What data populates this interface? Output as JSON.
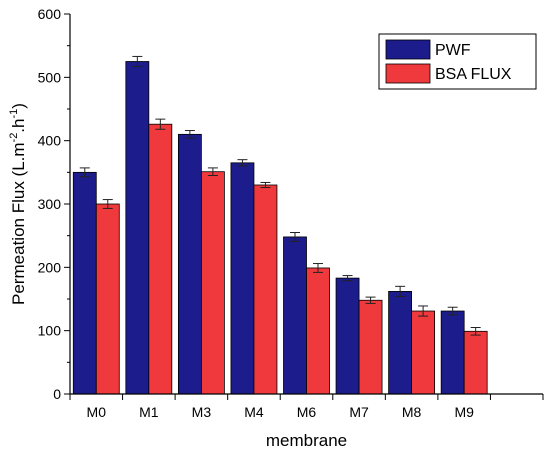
{
  "chart_data": {
    "type": "bar",
    "categories": [
      "M0",
      "M1",
      "M3",
      "M4",
      "M6",
      "M7",
      "M8",
      "M9"
    ],
    "series": [
      {
        "name": "PWF",
        "color": "#1c1c8c",
        "values": [
          350,
          525,
          410,
          365,
          248,
          183,
          162,
          131
        ],
        "errors": [
          7,
          8,
          6,
          5,
          7,
          4,
          8,
          6
        ]
      },
      {
        "name": "BSA FLUX",
        "color": "#f0393c",
        "values": [
          300,
          426,
          351,
          330,
          199,
          148,
          131,
          99
        ],
        "errors": [
          7,
          8,
          6,
          4,
          7,
          5,
          8,
          6
        ]
      }
    ],
    "xlabel": "membrane",
    "ylabel": "Permeation Flux (L.m-2.h-1)",
    "ylabel_parts": {
      "base": "Permeation Flux (L.m",
      "sup1": "-2",
      "mid": ".h",
      "sup2": "-1",
      "end": ")"
    },
    "ylim": [
      0,
      600
    ],
    "yticks": [
      "0",
      "100",
      "200",
      "300",
      "400",
      "500",
      "600"
    ],
    "legend_position": "top-right",
    "grid": false
  }
}
